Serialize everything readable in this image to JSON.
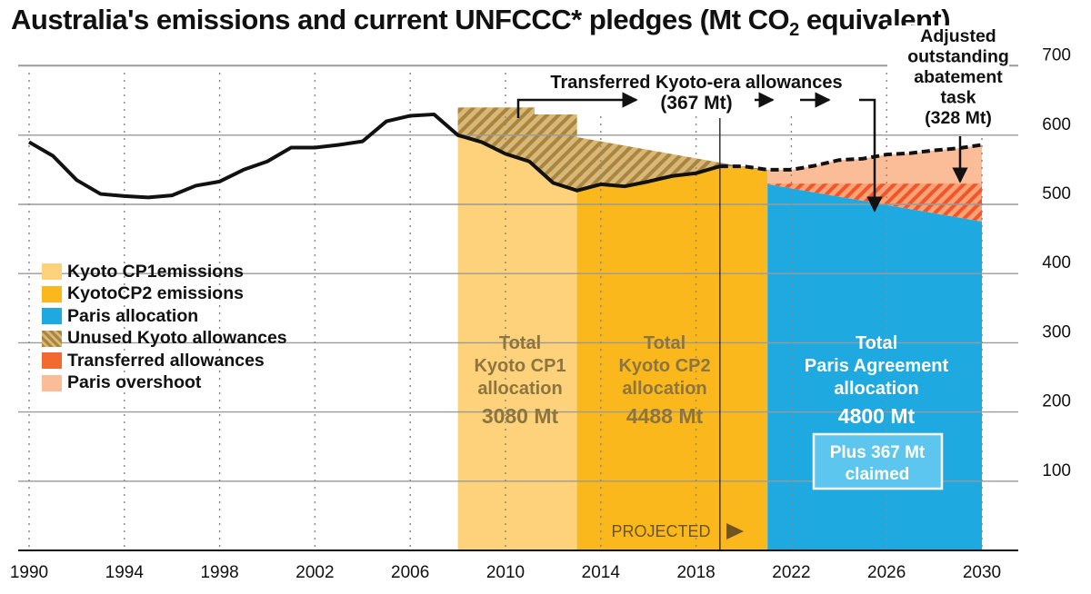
{
  "title": {
    "main": "Australia's emissions and current UNFCCC* pledges (Mt CO",
    "sub": "2",
    "tail": " equivalent)"
  },
  "colors": {
    "kyoto_cp1": "#fdd27b",
    "kyoto_cp2": "#fbb81d",
    "paris": "#1ea9e1",
    "unused_kyoto": "#c19a50",
    "transferred": "#f26a2f",
    "overshoot": "#fbbc98",
    "gray_gap": "#808080",
    "line": "#111111"
  },
  "legend": [
    {
      "label": "Kyoto CP1emissions",
      "color": "#fdd27b",
      "pattern": "none"
    },
    {
      "label": "KyotoCP2 emissions",
      "color": "#fbb81d",
      "pattern": "none"
    },
    {
      "label": "Paris allocation",
      "color": "#1ea9e1",
      "pattern": "none"
    },
    {
      "label": "Unused Kyoto allowances",
      "color": "#c19a50",
      "pattern": "hatch"
    },
    {
      "label": "Transferred allowances",
      "color": "#f26a2f",
      "pattern": "none"
    },
    {
      "label": "Paris overshoot",
      "color": "#fbbc98",
      "pattern": "none"
    }
  ],
  "chart_data": {
    "type": "line",
    "x_ticks": [
      "1990",
      "1994",
      "1998",
      "2002",
      "2006",
      "2010",
      "2014",
      "2018",
      "2022",
      "2026",
      "2030"
    ],
    "y_ticks": [
      "100",
      "200",
      "300",
      "400",
      "500",
      "600",
      "700"
    ],
    "xlim": [
      1990,
      2030
    ],
    "ylim": [
      0,
      720
    ],
    "y_axis_position": "right",
    "grid": true,
    "legend_position": "left",
    "series": [
      {
        "style": "solid",
        "points": [
          [
            1990,
            590
          ],
          [
            1991,
            570
          ],
          [
            1992,
            535
          ],
          [
            1993,
            515
          ],
          [
            1994,
            512
          ],
          [
            1995,
            510
          ],
          [
            1996,
            513
          ],
          [
            1997,
            527
          ],
          [
            1998,
            533
          ],
          [
            1999,
            550
          ],
          [
            2000,
            562
          ],
          [
            2001,
            582
          ],
          [
            2002,
            582
          ],
          [
            2003,
            586
          ],
          [
            2004,
            591
          ],
          [
            2005,
            620
          ],
          [
            2006,
            628
          ],
          [
            2007,
            630
          ],
          [
            2008,
            600
          ],
          [
            2009,
            590
          ],
          [
            2010,
            573
          ],
          [
            2011,
            562
          ],
          [
            2012,
            531
          ],
          [
            2013,
            520
          ],
          [
            2014,
            529
          ],
          [
            2015,
            526
          ],
          [
            2016,
            533
          ],
          [
            2017,
            541
          ],
          [
            2018,
            545
          ],
          [
            2019,
            555
          ]
        ]
      },
      {
        "style": "dashed",
        "points": [
          [
            2019,
            555
          ],
          [
            2020,
            555
          ],
          [
            2021,
            550
          ],
          [
            2022,
            550
          ],
          [
            2023,
            556
          ],
          [
            2024,
            564
          ],
          [
            2025,
            566
          ],
          [
            2026,
            572
          ],
          [
            2027,
            574
          ],
          [
            2028,
            578
          ],
          [
            2029,
            581
          ],
          [
            2030,
            586
          ]
        ]
      }
    ],
    "regions": [
      {
        "name": "kyoto_cp1",
        "x": [
          2008,
          2013
        ],
        "top": 640
      },
      {
        "name": "kyoto_cp2",
        "x": [
          2013,
          2021
        ],
        "top_start": 597,
        "top_end": 548
      },
      {
        "name": "paris",
        "x": [
          2021,
          2030
        ],
        "top_start": 529,
        "top_end": 475
      },
      {
        "name": "transferred",
        "x": [
          2021,
          2030
        ],
        "top": 530
      },
      {
        "name": "overshoot",
        "x": [
          2021,
          2030
        ]
      }
    ],
    "projected_from": 2019,
    "annotations": {
      "transferred_line1": "Transferred Kyoto-era allowances",
      "transferred_line2": "(367 Mt)",
      "adjusted_line1": "Adjusted",
      "adjusted_line2": "outstanding",
      "adjusted_line3": "abatement",
      "adjusted_line4": "task",
      "adjusted_line5": "(328 Mt)",
      "cp1_line1": "Total",
      "cp1_line2": "Kyoto CP1",
      "cp1_line3": "allocation",
      "cp1_value": "3080 Mt",
      "cp2_line1": "Total",
      "cp2_line2": "Kyoto CP2",
      "cp2_line3": "allocation",
      "cp2_value": "4488 Mt",
      "paris_line1": "Total",
      "paris_line2": "Paris Agreement",
      "paris_line3": "allocation",
      "paris_value": "4800 Mt",
      "plus_line1": "Plus 367 Mt",
      "plus_line2": "claimed",
      "projected": "PROJECTED"
    }
  }
}
